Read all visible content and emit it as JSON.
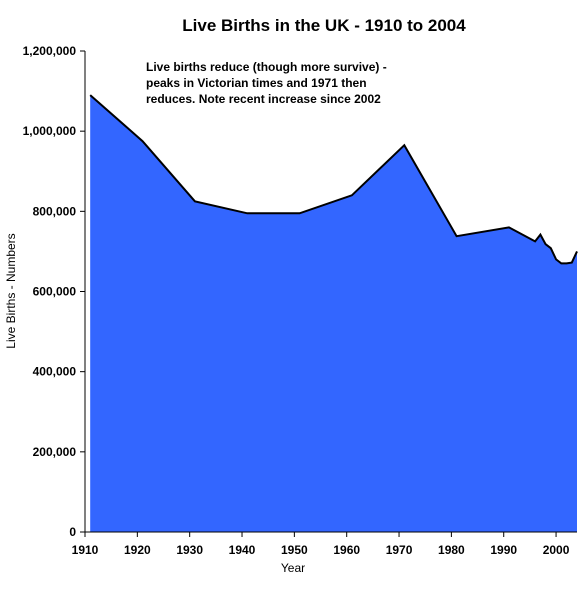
{
  "chart_data": {
    "type": "area",
    "title": "Live Births in the UK - 1910 to 2004",
    "xlabel": "Year",
    "ylabel": "Live Births - Numbers",
    "xlim": [
      1910,
      2004
    ],
    "ylim": [
      0,
      1200000
    ],
    "x_ticks": [
      1910,
      1920,
      1930,
      1940,
      1950,
      1960,
      1970,
      1980,
      1990,
      2000
    ],
    "x_tick_labels": [
      "1910",
      "1920",
      "1930",
      "1940",
      "1950",
      "1960",
      "1970",
      "1980",
      "1990",
      "2000"
    ],
    "y_ticks": [
      0,
      200000,
      400000,
      600000,
      800000,
      1000000,
      1200000
    ],
    "y_tick_labels": [
      "0",
      "200,000",
      "400,000",
      "600,000",
      "800,000",
      "1,000,000",
      "1,200,000"
    ],
    "grid": false,
    "legend": "none",
    "series": [
      {
        "color": "#3366ff",
        "x": [
          1911,
          1921,
          1931,
          1941,
          1951,
          1961,
          1971,
          1981,
          1991,
          1996,
          1997,
          1998,
          1999,
          2000,
          2001,
          2002,
          2003,
          2004
        ],
        "values": [
          1090000,
          975000,
          825000,
          795000,
          795000,
          840000,
          965000,
          738000,
          760000,
          725000,
          742000,
          718000,
          708000,
          680000,
          670000,
          670000,
          672000,
          700000
        ]
      }
    ],
    "annotations": [
      "Live births reduce (though more survive) -",
      "peaks in Victorian times and 1971 then",
      "reduces. Note recent increase since 2002"
    ]
  }
}
